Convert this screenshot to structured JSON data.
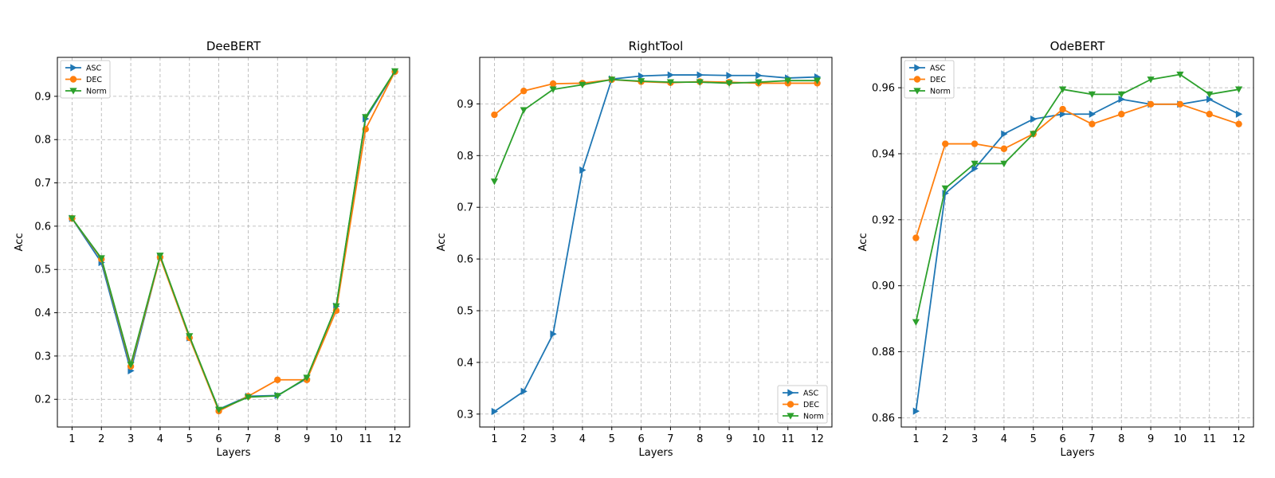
{
  "colors": {
    "ASC": "#1f77b4",
    "DEC": "#ff7f0e",
    "Norm": "#2ca02c"
  },
  "chart_data": [
    {
      "type": "line",
      "title": "DeeBERT",
      "xlabel": "Layers",
      "ylabel": "Acc",
      "x": [
        1,
        2,
        3,
        4,
        5,
        6,
        7,
        8,
        9,
        10,
        11,
        12
      ],
      "xticks": [
        "1",
        "2",
        "3",
        "4",
        "5",
        "6",
        "7",
        "8",
        "9",
        "10",
        "11",
        "12"
      ],
      "ylim": [
        0.136,
        0.99
      ],
      "yticks": [
        0.2,
        0.3,
        0.4,
        0.5,
        0.6,
        0.7,
        0.8,
        0.9
      ],
      "ytick_labels": [
        "0.2",
        "0.3",
        "0.4",
        "0.5",
        "0.6",
        "0.7",
        "0.8",
        "0.9"
      ],
      "grid": true,
      "legend": "upper-left",
      "series": [
        {
          "name": "ASC",
          "marker": "triangle-right",
          "values": [
            0.618,
            0.516,
            0.266,
            0.53,
            0.342,
            0.177,
            0.207,
            0.209,
            0.248,
            0.415,
            0.848,
            0.957
          ]
        },
        {
          "name": "DEC",
          "marker": "circle",
          "values": [
            0.618,
            0.524,
            0.276,
            0.528,
            0.342,
            0.173,
            0.207,
            0.245,
            0.245,
            0.405,
            0.824,
            0.957
          ]
        },
        {
          "name": "Norm",
          "marker": "triangle-down",
          "values": [
            0.618,
            0.526,
            0.28,
            0.532,
            0.346,
            0.176,
            0.205,
            0.208,
            0.25,
            0.415,
            0.852,
            0.958
          ]
        }
      ]
    },
    {
      "type": "line",
      "title": "RightTool",
      "xlabel": "Layers",
      "ylabel": "Acc",
      "x": [
        1,
        2,
        3,
        4,
        5,
        6,
        7,
        8,
        9,
        10,
        11,
        12
      ],
      "xticks": [
        "1",
        "2",
        "3",
        "4",
        "5",
        "6",
        "7",
        "8",
        "9",
        "10",
        "11",
        "12"
      ],
      "ylim": [
        0.275,
        0.99
      ],
      "yticks": [
        0.3,
        0.4,
        0.5,
        0.6,
        0.7,
        0.8,
        0.9
      ],
      "ytick_labels": [
        "0.3",
        "0.4",
        "0.5",
        "0.6",
        "0.7",
        "0.8",
        "0.9"
      ],
      "grid": true,
      "legend": "lower-right",
      "series": [
        {
          "name": "ASC",
          "marker": "triangle-right",
          "values": [
            0.305,
            0.344,
            0.455,
            0.772,
            0.948,
            0.954,
            0.956,
            0.956,
            0.955,
            0.955,
            0.95,
            0.952
          ]
        },
        {
          "name": "DEC",
          "marker": "circle",
          "values": [
            0.879,
            0.925,
            0.939,
            0.94,
            0.947,
            0.943,
            0.941,
            0.943,
            0.942,
            0.94,
            0.94,
            0.94
          ]
        },
        {
          "name": "Norm",
          "marker": "triangle-down",
          "values": [
            0.75,
            0.888,
            0.928,
            0.937,
            0.947,
            0.944,
            0.942,
            0.942,
            0.94,
            0.942,
            0.945,
            0.945
          ]
        }
      ]
    },
    {
      "type": "line",
      "title": "OdeBERT",
      "xlabel": "Layers",
      "ylabel": "Acc",
      "x": [
        1,
        2,
        3,
        4,
        5,
        6,
        7,
        8,
        9,
        10,
        11,
        12
      ],
      "xticks": [
        "1",
        "2",
        "3",
        "4",
        "5",
        "6",
        "7",
        "8",
        "9",
        "10",
        "11",
        "12"
      ],
      "ylim": [
        0.8572,
        0.9692
      ],
      "yticks": [
        0.86,
        0.88,
        0.9,
        0.92,
        0.94,
        0.96
      ],
      "ytick_labels": [
        "0.86",
        "0.88",
        "0.90",
        "0.92",
        "0.94",
        "0.96"
      ],
      "grid": true,
      "legend": "upper-left",
      "series": [
        {
          "name": "ASC",
          "marker": "triangle-right",
          "values": [
            0.862,
            0.928,
            0.9355,
            0.946,
            0.9505,
            0.952,
            0.952,
            0.9565,
            0.955,
            0.955,
            0.9565,
            0.952
          ]
        },
        {
          "name": "DEC",
          "marker": "circle",
          "values": [
            0.9145,
            0.943,
            0.943,
            0.9415,
            0.946,
            0.9535,
            0.949,
            0.952,
            0.955,
            0.955,
            0.952,
            0.949
          ]
        },
        {
          "name": "Norm",
          "marker": "triangle-down",
          "values": [
            0.889,
            0.9295,
            0.937,
            0.937,
            0.946,
            0.9595,
            0.958,
            0.958,
            0.9625,
            0.964,
            0.958,
            0.9595
          ]
        }
      ]
    }
  ]
}
